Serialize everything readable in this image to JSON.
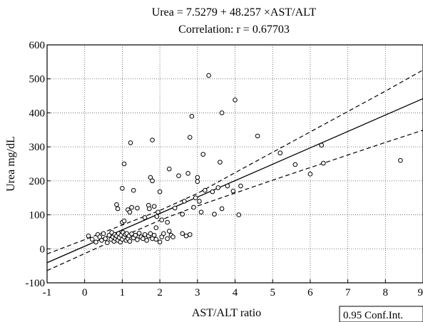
{
  "chart_data": {
    "type": "scatter",
    "title": "Urea = 7.5279 + 48.257 ×AST/ALT",
    "subtitle": "Correlation: r = 0.67703",
    "xlabel": "AST/ALT ratio",
    "ylabel": "Urea mg/dL",
    "xlim": [
      -1,
      9
    ],
    "ylim": [
      -100,
      600
    ],
    "x_ticks": [
      -1,
      0,
      1,
      2,
      3,
      4,
      5,
      6,
      7,
      8,
      9
    ],
    "y_ticks": [
      -100,
      0,
      100,
      200,
      300,
      400,
      500,
      600
    ],
    "x_tick_labels": [
      "-1",
      "0",
      "1",
      "2",
      "3",
      "4",
      "5",
      "6",
      "7",
      "8",
      "9"
    ],
    "y_tick_labels": [
      "-100",
      "0",
      "100",
      "200",
      "300",
      "400",
      "500",
      "600"
    ],
    "grid": true,
    "grid_style": "dotted",
    "legend_label": "0.95 Conf.Int.",
    "legend_placement": "bottom-right, below plot",
    "regression": {
      "intercept": 7.5279,
      "slope": 48.257
    },
    "confidence_band": {
      "x": [
        -1,
        0,
        1,
        2,
        3,
        4,
        5,
        6,
        7,
        8,
        9
      ],
      "upper": [
        -15,
        27,
        70,
        113,
        163,
        224,
        284,
        344,
        404,
        464,
        526
      ],
      "lower": [
        -64,
        -14,
        36,
        84,
        126,
        164,
        202,
        239,
        276,
        313,
        349
      ]
    },
    "points": [
      {
        "x": 0.1,
        "y": 38
      },
      {
        "x": 0.2,
        "y": 28
      },
      {
        "x": 0.3,
        "y": 20
      },
      {
        "x": 0.35,
        "y": 42
      },
      {
        "x": 0.4,
        "y": 35
      },
      {
        "x": 0.45,
        "y": 25
      },
      {
        "x": 0.5,
        "y": 45
      },
      {
        "x": 0.55,
        "y": 30
      },
      {
        "x": 0.6,
        "y": 18
      },
      {
        "x": 0.65,
        "y": 40
      },
      {
        "x": 0.7,
        "y": 28
      },
      {
        "x": 0.72,
        "y": 48
      },
      {
        "x": 0.75,
        "y": 35
      },
      {
        "x": 0.78,
        "y": 22
      },
      {
        "x": 0.8,
        "y": 42
      },
      {
        "x": 0.82,
        "y": 30
      },
      {
        "x": 0.85,
        "y": 38
      },
      {
        "x": 0.88,
        "y": 25
      },
      {
        "x": 0.9,
        "y": 45
      },
      {
        "x": 0.92,
        "y": 33
      },
      {
        "x": 0.95,
        "y": 20
      },
      {
        "x": 0.97,
        "y": 40
      },
      {
        "x": 1.0,
        "y": 28
      },
      {
        "x": 1.02,
        "y": 48
      },
      {
        "x": 1.05,
        "y": 35
      },
      {
        "x": 1.08,
        "y": 42
      },
      {
        "x": 1.1,
        "y": 25
      },
      {
        "x": 1.12,
        "y": 45
      },
      {
        "x": 1.15,
        "y": 30
      },
      {
        "x": 1.18,
        "y": 38
      },
      {
        "x": 1.2,
        "y": 22
      },
      {
        "x": 1.25,
        "y": 44
      },
      {
        "x": 1.3,
        "y": 32
      },
      {
        "x": 1.35,
        "y": 40
      },
      {
        "x": 1.4,
        "y": 27
      },
      {
        "x": 1.45,
        "y": 46
      },
      {
        "x": 1.5,
        "y": 35
      },
      {
        "x": 1.55,
        "y": 30
      },
      {
        "x": 1.6,
        "y": 42
      },
      {
        "x": 1.65,
        "y": 25
      },
      {
        "x": 1.7,
        "y": 38
      },
      {
        "x": 1.75,
        "y": 45
      },
      {
        "x": 1.8,
        "y": 30
      },
      {
        "x": 1.85,
        "y": 40
      },
      {
        "x": 1.9,
        "y": 28
      },
      {
        "x": 2.0,
        "y": 20
      },
      {
        "x": 2.05,
        "y": 35
      },
      {
        "x": 2.1,
        "y": 45
      },
      {
        "x": 2.2,
        "y": 30
      },
      {
        "x": 2.25,
        "y": 52
      },
      {
        "x": 2.3,
        "y": 40
      },
      {
        "x": 2.35,
        "y": 35
      },
      {
        "x": 2.6,
        "y": 45
      },
      {
        "x": 2.7,
        "y": 38
      },
      {
        "x": 2.8,
        "y": 42
      },
      {
        "x": 0.85,
        "y": 130
      },
      {
        "x": 0.88,
        "y": 118
      },
      {
        "x": 1.0,
        "y": 78
      },
      {
        "x": 1.05,
        "y": 82
      },
      {
        "x": 1.0,
        "y": 178
      },
      {
        "x": 1.05,
        "y": 250
      },
      {
        "x": 1.15,
        "y": 115
      },
      {
        "x": 1.2,
        "y": 108
      },
      {
        "x": 1.25,
        "y": 122
      },
      {
        "x": 1.22,
        "y": 312
      },
      {
        "x": 1.3,
        "y": 172
      },
      {
        "x": 1.4,
        "y": 120
      },
      {
        "x": 1.6,
        "y": 92
      },
      {
        "x": 1.7,
        "y": 128
      },
      {
        "x": 1.72,
        "y": 118
      },
      {
        "x": 1.75,
        "y": 210
      },
      {
        "x": 1.8,
        "y": 200
      },
      {
        "x": 1.8,
        "y": 320
      },
      {
        "x": 1.85,
        "y": 125
      },
      {
        "x": 1.9,
        "y": 62
      },
      {
        "x": 1.92,
        "y": 95
      },
      {
        "x": 1.95,
        "y": 108
      },
      {
        "x": 2.0,
        "y": 168
      },
      {
        "x": 2.05,
        "y": 85
      },
      {
        "x": 2.2,
        "y": 78
      },
      {
        "x": 2.25,
        "y": 235
      },
      {
        "x": 2.4,
        "y": 120
      },
      {
        "x": 2.5,
        "y": 215
      },
      {
        "x": 2.6,
        "y": 102
      },
      {
        "x": 2.65,
        "y": 140
      },
      {
        "x": 2.75,
        "y": 222
      },
      {
        "x": 2.8,
        "y": 328
      },
      {
        "x": 2.85,
        "y": 390
      },
      {
        "x": 2.9,
        "y": 122
      },
      {
        "x": 2.95,
        "y": 150
      },
      {
        "x": 3.0,
        "y": 210
      },
      {
        "x": 3.0,
        "y": 198
      },
      {
        "x": 3.05,
        "y": 140
      },
      {
        "x": 3.1,
        "y": 108
      },
      {
        "x": 3.15,
        "y": 278
      },
      {
        "x": 3.2,
        "y": 172
      },
      {
        "x": 3.3,
        "y": 510
      },
      {
        "x": 3.4,
        "y": 168
      },
      {
        "x": 3.45,
        "y": 102
      },
      {
        "x": 3.55,
        "y": 180
      },
      {
        "x": 3.6,
        "y": 255
      },
      {
        "x": 3.65,
        "y": 400
      },
      {
        "x": 3.65,
        "y": 118
      },
      {
        "x": 3.8,
        "y": 185
      },
      {
        "x": 3.95,
        "y": 170
      },
      {
        "x": 4.0,
        "y": 438
      },
      {
        "x": 4.1,
        "y": 100
      },
      {
        "x": 4.15,
        "y": 185
      },
      {
        "x": 4.6,
        "y": 332
      },
      {
        "x": 5.2,
        "y": 282
      },
      {
        "x": 5.6,
        "y": 248
      },
      {
        "x": 6.0,
        "y": 220
      },
      {
        "x": 6.3,
        "y": 305
      },
      {
        "x": 6.35,
        "y": 252
      },
      {
        "x": 8.4,
        "y": 260
      }
    ]
  }
}
